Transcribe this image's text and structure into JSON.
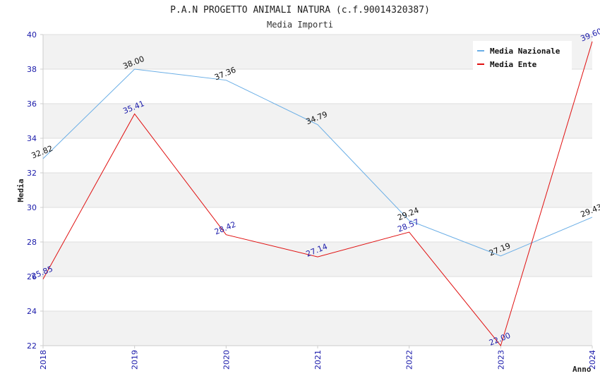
{
  "chart_data": {
    "type": "line",
    "title": "P.A.N PROGETTO ANIMALI NATURA (c.f.90014320387)",
    "subtitle": "Media Importi",
    "xlabel": "Anno",
    "ylabel": "Media",
    "categories": [
      "2018",
      "2019",
      "2020",
      "2021",
      "2022",
      "2023",
      "2024"
    ],
    "ylim": [
      22,
      40
    ],
    "yticks": [
      22,
      24,
      26,
      28,
      30,
      32,
      34,
      36,
      38,
      40
    ],
    "grid": true,
    "legend_position": "top-right",
    "series": [
      {
        "name": "Media Nazionale",
        "color": "#6aaee6",
        "label_color": "#111111",
        "values": [
          32.82,
          38.0,
          37.36,
          34.79,
          29.24,
          27.19,
          29.43
        ],
        "labels": [
          "32.82",
          "38.00",
          "37.36",
          "34.79",
          "29.24",
          "27.19",
          "29.43"
        ]
      },
      {
        "name": "Media Ente",
        "color": "#e01010",
        "label_color": "#1a1aaa",
        "values": [
          25.85,
          35.41,
          28.42,
          27.14,
          28.57,
          22.0,
          39.6
        ],
        "labels": [
          "25.85",
          "35.41",
          "28.42",
          "27.14",
          "28.57",
          "22.00",
          "39.60"
        ]
      }
    ]
  }
}
